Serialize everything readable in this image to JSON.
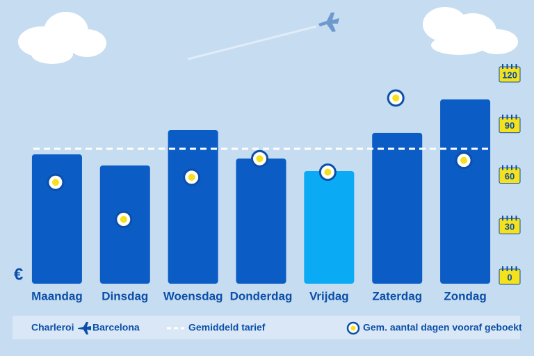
{
  "chart_data": {
    "type": "bar",
    "currency_label": "€",
    "categories": [
      "Maandag",
      "Dinsdag",
      "Woensdag",
      "Donderdag",
      "Vrijdag",
      "Zaterdag",
      "Zondag"
    ],
    "ylim": [
      0,
      300
    ],
    "series": [
      {
        "values": [
          186,
          170,
          221,
          180,
          162,
          217,
          265
        ],
        "colors": [
          "#0b5cc5",
          "#0b5cc5",
          "#0b5cc5",
          "#0b5cc5",
          "#0aabf4",
          "#0b5cc5",
          "#0b5cc5"
        ]
      },
      {
        "name": "Gem. aantal dagen vooraf geboekt",
        "axis": "y2",
        "values": [
          56,
          34,
          59,
          70,
          62,
          106,
          69
        ],
        "color": "#f5e11c"
      }
    ],
    "average": {
      "name": "Gemiddeld tarief",
      "value": 194,
      "color": "#ffffff"
    },
    "y2lim": [
      0,
      120
    ],
    "y2ticks": [
      0,
      30,
      60,
      90,
      120
    ],
    "route": {
      "from": "Charleroi",
      "to": "Barcelona"
    }
  }
}
